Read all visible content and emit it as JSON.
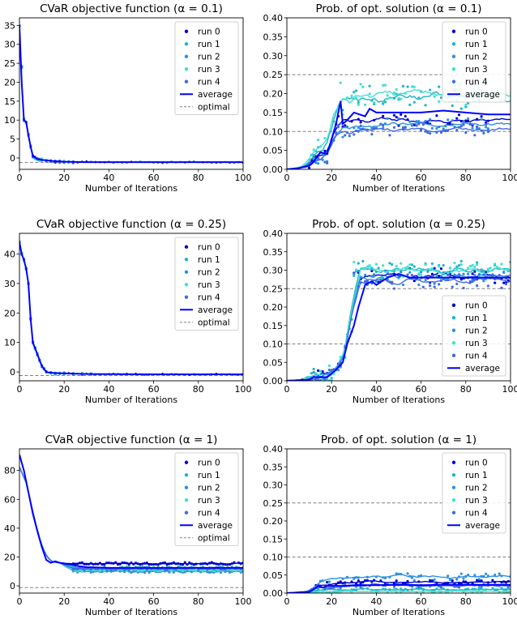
{
  "colors": {
    "run0": "#0000cd",
    "run1": "#1fb5c7",
    "run2": "#2e8fe0",
    "run3": "#40e0d0",
    "run4": "#4169e1",
    "average": "#0000ff",
    "reference": "#808080"
  },
  "chart_data": [
    {
      "type": "scatter",
      "title": "CVaR objective function (α = 0.1)",
      "xlabel": "Number of Iterations",
      "xlim": [
        0,
        100
      ],
      "ylim": [
        -3,
        37
      ],
      "xticks": [
        0,
        20,
        40,
        60,
        80,
        100
      ],
      "yticks": [
        0,
        5,
        10,
        15,
        20,
        25,
        30,
        35
      ],
      "legend_position": "top-right",
      "legend": [
        "run 0",
        "run 1",
        "run 2",
        "run 3",
        "run 4",
        "average",
        "optimal"
      ],
      "optimal": -1.2,
      "average_curve": {
        "x": [
          0,
          1,
          2,
          3,
          4,
          5,
          6,
          8,
          10,
          15,
          20,
          30,
          50,
          100
        ],
        "y": [
          35,
          20,
          10,
          9.5,
          6,
          3,
          0.5,
          -0.3,
          -0.5,
          -0.8,
          -1.0,
          -1.1,
          -1.1,
          -1.1
        ]
      },
      "run_points": {
        "x": [
          0,
          1,
          2,
          3,
          4,
          5,
          6,
          7,
          8,
          9,
          10,
          12,
          14,
          16,
          18,
          20,
          22,
          24
        ],
        "y": [
          35,
          24,
          10,
          9.5,
          6,
          3,
          0.5,
          0,
          -0.3,
          -0.5,
          -0.5,
          -0.6,
          -0.8,
          -0.9,
          -1.0,
          -1.0,
          -1.1,
          -1.1
        ]
      }
    },
    {
      "type": "scatter",
      "title": "Prob. of opt. solution (α = 0.1)",
      "xlabel": "Number of Iterations",
      "xlim": [
        0,
        100
      ],
      "ylim": [
        0,
        0.4
      ],
      "xticks": [
        0,
        20,
        40,
        60,
        80,
        100
      ],
      "yticks": [
        0.0,
        0.05,
        0.1,
        0.15,
        0.2,
        0.25,
        0.3,
        0.35,
        0.4
      ],
      "legend_position": "top-right",
      "legend": [
        "run 0",
        "run 1",
        "run 2",
        "run 3",
        "run 4",
        "average"
      ],
      "hlines": [
        0.1,
        0.25
      ],
      "average_curve": {
        "x": [
          0,
          5,
          10,
          12,
          15,
          18,
          20,
          22,
          24,
          25,
          27,
          30,
          35,
          37,
          40,
          50,
          60,
          70,
          80,
          90,
          100
        ],
        "y": [
          0,
          0.003,
          0.01,
          0.02,
          0.045,
          0.04,
          0.08,
          0.12,
          0.18,
          0.12,
          0.13,
          0.15,
          0.14,
          0.16,
          0.15,
          0.15,
          0.15,
          0.155,
          0.15,
          0.145,
          0.145
        ]
      },
      "run_levels": [
        0.13,
        0.19,
        0.12,
        0.2,
        0.105
      ],
      "run_noise": [
        0.015,
        0.03,
        0.015,
        0.03,
        0.015
      ],
      "run_end": 90
    },
    {
      "type": "scatter",
      "title": "CVaR objective function (α = 0.25)",
      "xlabel": "Number of Iterations",
      "xlim": [
        0,
        100
      ],
      "ylim": [
        -3,
        47
      ],
      "xticks": [
        0,
        20,
        40,
        60,
        80,
        100
      ],
      "yticks": [
        0,
        10,
        20,
        30,
        40
      ],
      "legend_position": "top-right",
      "legend": [
        "run 0",
        "run 1",
        "run 2",
        "run 3",
        "run 4",
        "average",
        "optimal"
      ],
      "optimal": -1.2,
      "average_curve": {
        "x": [
          0,
          1,
          2,
          3,
          4,
          5,
          6,
          7,
          8,
          10,
          12,
          14,
          20,
          30,
          60,
          100
        ],
        "y": [
          44,
          40,
          38,
          35,
          30,
          18,
          10,
          8,
          6,
          2,
          0,
          -0.3,
          -0.5,
          -0.7,
          -0.8,
          -0.8
        ]
      },
      "run_points": {
        "x": [
          0,
          1,
          2,
          3,
          4,
          5,
          6,
          7,
          8,
          9,
          10,
          11,
          12,
          14,
          16,
          18,
          20,
          24,
          28,
          32
        ],
        "y": [
          44,
          40,
          38,
          35,
          30,
          18,
          10,
          8,
          6,
          4,
          2,
          1,
          0,
          -0.3,
          -0.4,
          -0.5,
          -0.5,
          -0.6,
          -0.7,
          -0.8
        ]
      }
    },
    {
      "type": "scatter",
      "title": "Prob. of opt. solution (α = 0.25)",
      "xlabel": "Number of Iterations",
      "xlim": [
        0,
        100
      ],
      "ylim": [
        0,
        0.4
      ],
      "xticks": [
        0,
        20,
        40,
        60,
        80,
        100
      ],
      "yticks": [
        0.0,
        0.05,
        0.1,
        0.15,
        0.2,
        0.25,
        0.3,
        0.35,
        0.4
      ],
      "legend_position": "lower-right",
      "legend": [
        "run 0",
        "run 1",
        "run 2",
        "run 3",
        "run 4",
        "average"
      ],
      "hlines": [
        0.1,
        0.25
      ],
      "average_curve": {
        "x": [
          0,
          10,
          12,
          15,
          18,
          20,
          22,
          25,
          27,
          30,
          32,
          35,
          38,
          40,
          45,
          50,
          55,
          60,
          70,
          80,
          90,
          100
        ],
        "y": [
          0,
          0.003,
          0.01,
          0.01,
          0.01,
          0.02,
          0.03,
          0.05,
          0.1,
          0.15,
          0.2,
          0.26,
          0.27,
          0.26,
          0.28,
          0.29,
          0.28,
          0.28,
          0.28,
          0.28,
          0.28,
          0.28
        ]
      },
      "run_levels": [
        0.285,
        0.3,
        0.28,
        0.3,
        0.27
      ],
      "run_noise": [
        0.02,
        0.025,
        0.02,
        0.025,
        0.02
      ],
      "run_end": 100
    },
    {
      "type": "scatter",
      "title": "CVaR objective function (α = 1)",
      "xlabel": "Number of Iterations",
      "xlim": [
        0,
        100
      ],
      "ylim": [
        -5,
        95
      ],
      "xticks": [
        0,
        20,
        40,
        60,
        80,
        100
      ],
      "yticks": [
        0,
        20,
        40,
        60,
        80
      ],
      "legend_position": "top-right",
      "legend": [
        "run 0",
        "run 1",
        "run 2",
        "run 3",
        "run 4",
        "average",
        "optimal"
      ],
      "optimal": -1.2,
      "average_curve": {
        "x": [
          0,
          2,
          4,
          6,
          8,
          10,
          12,
          14,
          16,
          18,
          20,
          25,
          30,
          40,
          50,
          60,
          70,
          80,
          90,
          100
        ],
        "y": [
          91,
          80,
          65,
          50,
          38,
          27,
          18,
          16,
          17,
          16,
          15.5,
          14,
          13,
          12.5,
          12.5,
          12.5,
          12.5,
          12.5,
          12.5,
          12.5
        ]
      },
      "run_levels": [
        15.5,
        12.5,
        10,
        11,
        12
      ],
      "run_noise": [
        0.8,
        0.8,
        0.8,
        0.8,
        0.8
      ]
    },
    {
      "type": "scatter",
      "title": "Prob. of opt. solution (α = 1)",
      "xlabel": "Number of Iterations",
      "xlim": [
        0,
        100
      ],
      "ylim": [
        0,
        0.4
      ],
      "xticks": [
        0,
        20,
        40,
        60,
        80,
        100
      ],
      "yticks": [
        0.0,
        0.05,
        0.1,
        0.15,
        0.2,
        0.25,
        0.3,
        0.35,
        0.4
      ],
      "legend_position": "top-right",
      "legend": [
        "run 0",
        "run 1",
        "run 2",
        "run 3",
        "run 4",
        "average"
      ],
      "hlines": [
        0.1,
        0.25
      ],
      "average_curve": {
        "x": [
          0,
          10,
          12,
          14,
          16,
          18,
          20,
          25,
          30,
          40,
          50,
          60,
          70,
          80,
          90,
          100
        ],
        "y": [
          0,
          0.003,
          0.01,
          0.02,
          0.015,
          0.02,
          0.02,
          0.02,
          0.022,
          0.022,
          0.023,
          0.022,
          0.023,
          0.023,
          0.023,
          0.023
        ]
      },
      "run_levels": [
        0.03,
        0.01,
        0.045,
        0.005,
        0.02
      ],
      "run_noise": [
        0.006,
        0.004,
        0.01,
        0.003,
        0.005
      ],
      "run_end": 100
    }
  ]
}
